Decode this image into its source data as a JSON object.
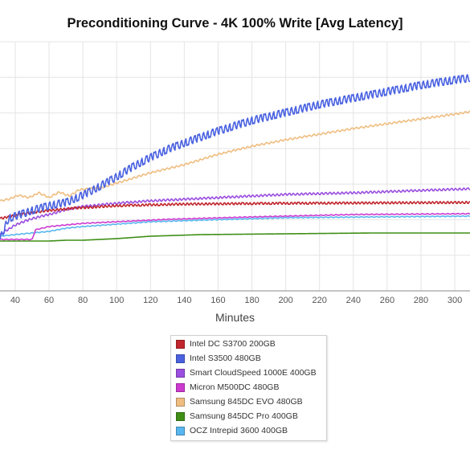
{
  "chart_data": {
    "type": "line",
    "title": "Preconditioning Curve - 4K 100% Write [Avg Latency]",
    "xlabel": "Minutes",
    "ylabel": "",
    "x_ticks": [
      40,
      60,
      80,
      100,
      120,
      140,
      160,
      180,
      200,
      220,
      240,
      260,
      280,
      300
    ],
    "xlim": [
      31,
      309
    ],
    "grid": true,
    "legend_position": "bottom",
    "series": [
      {
        "name": "Intel DC S3700 200GB",
        "color": "#c1272d",
        "amp": 1.2,
        "period": 2.2,
        "points": [
          [
            31,
            272
          ],
          [
            45,
            266
          ],
          [
            60,
            262
          ],
          [
            75,
            259
          ],
          [
            85,
            258
          ],
          [
            100,
            256
          ],
          [
            140,
            254
          ],
          [
            200,
            253
          ],
          [
            309,
            252
          ]
        ]
      },
      {
        "name": "Intel S3500 480GB",
        "color": "#4a62e0",
        "amp": 4.5,
        "period": 2.6,
        "points": [
          [
            31,
            298
          ],
          [
            36,
            272
          ],
          [
            50,
            262
          ],
          [
            60,
            256
          ],
          [
            70,
            252
          ],
          [
            80,
            243
          ],
          [
            90,
            232
          ],
          [
            100,
            220
          ],
          [
            110,
            207
          ],
          [
            120,
            196
          ],
          [
            130,
            186
          ],
          [
            140,
            178
          ],
          [
            160,
            163
          ],
          [
            180,
            150
          ],
          [
            200,
            140
          ],
          [
            220,
            130
          ],
          [
            240,
            122
          ],
          [
            260,
            114
          ],
          [
            280,
            106
          ],
          [
            295,
            101
          ],
          [
            309,
            97
          ]
        ]
      },
      {
        "name": "Smart CloudSpeed 1000E 400GB",
        "color": "#9a4fe0",
        "amp": 1.2,
        "period": 2.4,
        "points": [
          [
            31,
            292
          ],
          [
            40,
            280
          ],
          [
            50,
            272
          ],
          [
            60,
            267
          ],
          [
            70,
            261
          ],
          [
            80,
            257
          ],
          [
            100,
            253
          ],
          [
            120,
            250
          ],
          [
            140,
            248
          ],
          [
            160,
            246
          ],
          [
            200,
            242
          ],
          [
            240,
            240
          ],
          [
            280,
            237
          ],
          [
            309,
            235
          ]
        ]
      },
      {
        "name": "Micron M500DC 480GB",
        "color": "#cc3ad0",
        "amp": 0.5,
        "period": 3.0,
        "points": [
          [
            31,
            298
          ],
          [
            50,
            298
          ],
          [
            52,
            286
          ],
          [
            60,
            282
          ],
          [
            80,
            278
          ],
          [
            100,
            276
          ],
          [
            130,
            273
          ],
          [
            180,
            270
          ],
          [
            240,
            267
          ],
          [
            309,
            266
          ]
        ]
      },
      {
        "name": "Samsung 845DC EVO 480GB",
        "color": "#efbd80",
        "amp": 1.0,
        "period": 2.8,
        "points": [
          [
            31,
            250
          ],
          [
            36,
            248
          ],
          [
            42,
            243
          ],
          [
            48,
            246
          ],
          [
            54,
            240
          ],
          [
            60,
            246
          ],
          [
            66,
            239
          ],
          [
            72,
            244
          ],
          [
            78,
            236
          ],
          [
            90,
            234
          ],
          [
            100,
            228
          ],
          [
            120,
            215
          ],
          [
            140,
            205
          ],
          [
            160,
            192
          ],
          [
            180,
            182
          ],
          [
            200,
            174
          ],
          [
            220,
            167
          ],
          [
            240,
            160
          ],
          [
            260,
            154
          ],
          [
            280,
            148
          ],
          [
            300,
            142
          ],
          [
            309,
            139
          ]
        ]
      },
      {
        "name": "Samsung 845DC Pro 400GB",
        "color": "#3f8f17",
        "amp": 0,
        "period": 3.0,
        "points": [
          [
            31,
            300
          ],
          [
            50,
            300
          ],
          [
            60,
            300
          ],
          [
            70,
            299
          ],
          [
            80,
            299
          ],
          [
            100,
            297
          ],
          [
            120,
            294
          ],
          [
            150,
            292
          ],
          [
            200,
            291
          ],
          [
            250,
            290
          ],
          [
            309,
            290
          ]
        ]
      },
      {
        "name": "OCZ Intrepid 3600 400GB",
        "color": "#58b6ee",
        "amp": 0.5,
        "period": 3.0,
        "points": [
          [
            31,
            294
          ],
          [
            40,
            292
          ],
          [
            50,
            290
          ],
          [
            60,
            288
          ],
          [
            70,
            284
          ],
          [
            80,
            282
          ],
          [
            100,
            279
          ],
          [
            120,
            276
          ],
          [
            150,
            274
          ],
          [
            200,
            271
          ],
          [
            250,
            270
          ],
          [
            309,
            269
          ]
        ]
      }
    ]
  }
}
